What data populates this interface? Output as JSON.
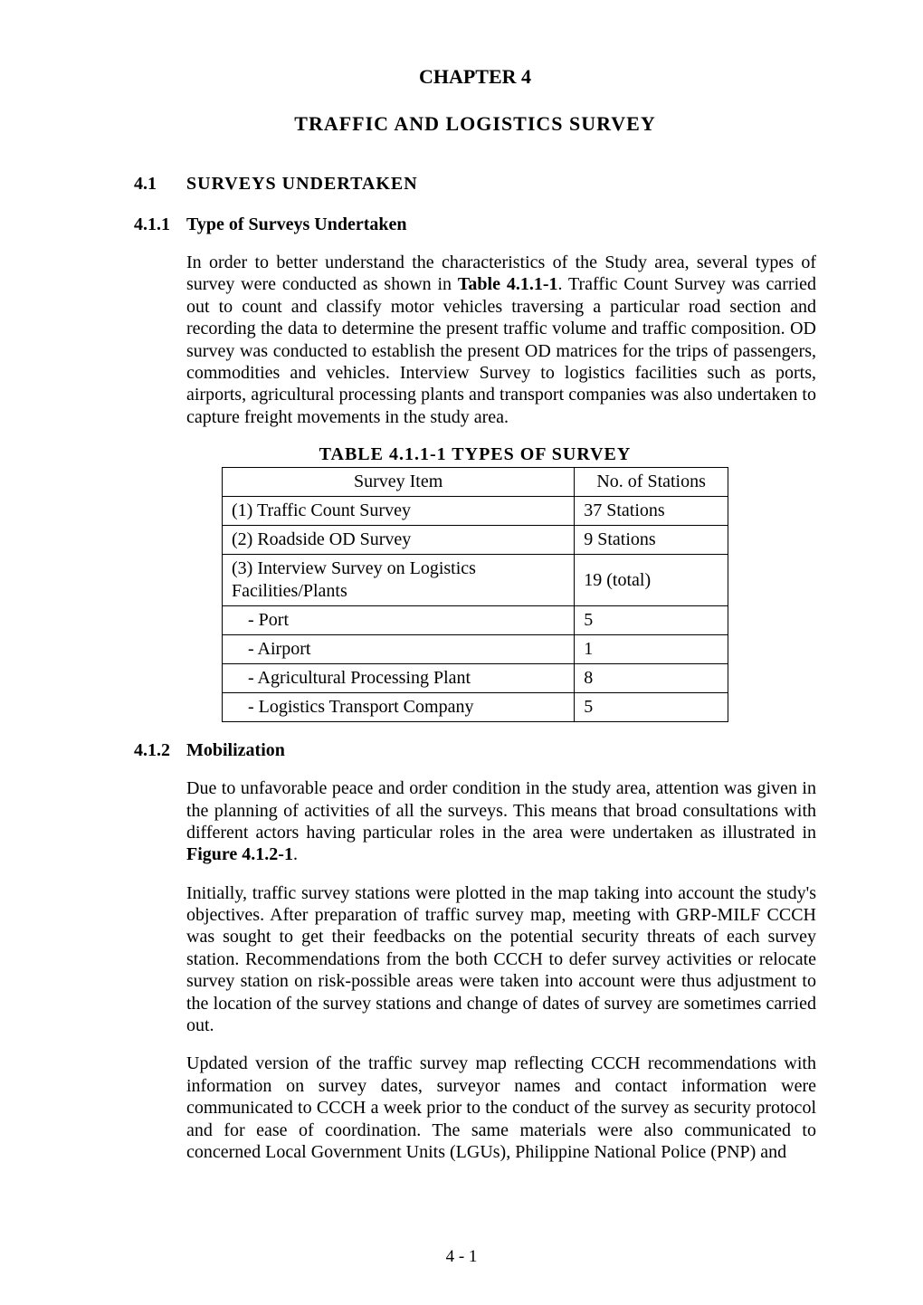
{
  "chapter": {
    "title": "CHAPTER 4",
    "subtitle": "TRAFFIC AND LOGISTICS SURVEY"
  },
  "section_4_1": {
    "num": "4.1",
    "title": "SURVEYS  UNDERTAKEN"
  },
  "section_4_1_1": {
    "num": "4.1.1",
    "title": "Type of Surveys Undertaken",
    "para_pre": "In order to better understand the characteristics of the Study area, several types of survey were conducted as shown in ",
    "para_bold": "Table 4.1.1-1",
    "para_post": ". Traffic Count Survey was carried out to count and classify motor vehicles traversing a particular road section and recording the data to determine the present traffic volume and traffic composition. OD survey was conducted to establish the present OD matrices for the trips of passengers, commodities and vehicles. Interview Survey to logistics facilities such as ports, airports, agricultural processing plants and transport companies was also undertaken to capture freight movements in the study area."
  },
  "table_4_1_1_1": {
    "caption": "TABLE 4.1.1-1 TYPES OF SURVEY",
    "header_item": "Survey Item",
    "header_count": "No. of Stations",
    "rows": [
      {
        "item": "(1) Traffic Count Survey",
        "count": "37 Stations",
        "indent": 0
      },
      {
        "item": "(2) Roadside OD Survey",
        "count": "9 Stations",
        "indent": 0
      },
      {
        "item": "(3) Interview Survey on Logistics Facilities/Plants",
        "count": "19 (total)",
        "indent": 0
      },
      {
        "item": "- Port",
        "count": "5",
        "indent": 1
      },
      {
        "item": "- Airport",
        "count": "1",
        "indent": 1
      },
      {
        "item": "- Agricultural Processing Plant",
        "count": "8",
        "indent": 1
      },
      {
        "item": "- Logistics Transport Company",
        "count": "5",
        "indent": 1
      }
    ]
  },
  "section_4_1_2": {
    "num": "4.1.2",
    "title": "Mobilization",
    "para1_pre": "Due to unfavorable peace and order condition in the study area, attention was given in the planning of activities of all the surveys. This means that broad consultations with different actors having particular roles in the area were undertaken as illustrated in ",
    "para1_bold": "Figure 4.1.2-1",
    "para1_post": ".",
    "para2": "Initially, traffic survey stations were plotted in the map taking into account the study's objectives. After preparation of traffic survey map, meeting with GRP-MILF CCCH was sought to get their feedbacks on the potential security threats of each survey station. Recommendations from the both CCCH to defer survey activities or relocate survey station on risk-possible areas were taken into account were thus adjustment to the location of the survey stations and change of dates of survey are sometimes carried out.",
    "para3": "Updated version of the traffic survey map reflecting CCCH recommendations with information on survey dates, surveyor names and contact information were communicated to CCCH a week prior to the conduct of the survey as security protocol and for ease of coordination. The same materials were also communicated to concerned Local Government Units (LGUs), Philippine National Police (PNP) and"
  },
  "page_number": "4 - 1"
}
